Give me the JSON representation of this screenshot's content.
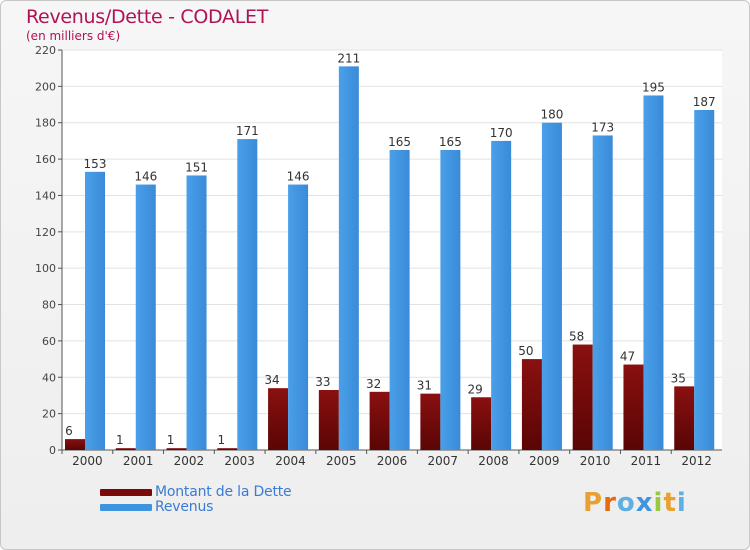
{
  "header": {
    "title": "Revenus/Dette - CODALET",
    "subtitle": "(en milliers d'€)"
  },
  "legend": {
    "items": [
      {
        "label": "Montant de la Dette",
        "color": "#7a0a0a"
      },
      {
        "label": "Revenus",
        "color": "#3f94e0"
      }
    ]
  },
  "logo": {
    "text": "Proxiti",
    "letter_colors": [
      "#e8a030",
      "#e86a10",
      "#5fb0e0",
      "#3f94e0",
      "#9ac840",
      "#e8a030",
      "#5fb0e0"
    ]
  },
  "chart_data": {
    "type": "bar",
    "categories": [
      "2000",
      "2001",
      "2002",
      "2003",
      "2004",
      "2005",
      "2006",
      "2007",
      "2008",
      "2009",
      "2010",
      "2011",
      "2012"
    ],
    "series": [
      {
        "name": "Montant de la Dette",
        "color": "#7a0a0a",
        "values": [
          6,
          1,
          1,
          1,
          34,
          33,
          32,
          31,
          29,
          50,
          58,
          47,
          35
        ]
      },
      {
        "name": "Revenus",
        "color": "#3f94e0",
        "values": [
          153,
          146,
          151,
          171,
          146,
          211,
          165,
          165,
          170,
          180,
          173,
          195,
          187
        ]
      }
    ],
    "ylim": [
      0,
      220
    ],
    "yticks": [
      0,
      20,
      40,
      60,
      80,
      100,
      120,
      140,
      160,
      180,
      200,
      220
    ],
    "grid": true
  }
}
